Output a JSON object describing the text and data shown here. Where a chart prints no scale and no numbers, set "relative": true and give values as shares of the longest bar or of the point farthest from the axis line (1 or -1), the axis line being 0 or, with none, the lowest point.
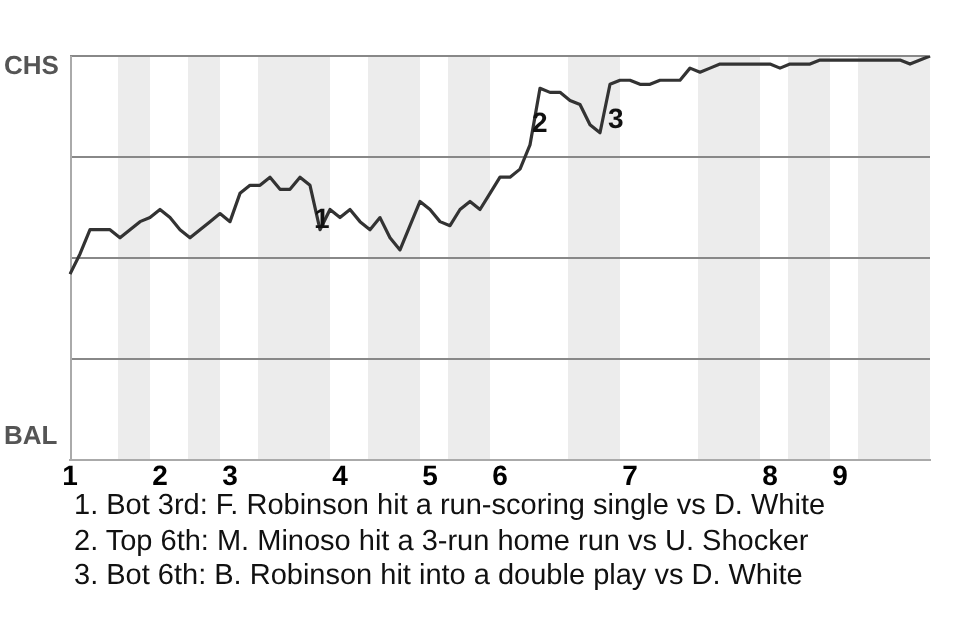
{
  "chart_data": {
    "type": "line",
    "relative": true,
    "categories": [
      "1",
      null,
      null,
      null,
      null,
      null,
      null,
      null,
      null,
      "2",
      null,
      null,
      null,
      null,
      null,
      null,
      "3",
      null,
      null,
      null,
      null,
      null,
      null,
      null,
      null,
      null,
      null,
      "4",
      null,
      null,
      null,
      null,
      null,
      null,
      null,
      null,
      "5",
      null,
      null,
      null,
      null,
      null,
      null,
      "6",
      null,
      null,
      null,
      null,
      null,
      null,
      null,
      null,
      null,
      null,
      null,
      null,
      "7",
      null,
      null,
      null,
      null,
      null,
      null,
      null,
      null,
      null,
      null,
      null,
      null,
      null,
      "8",
      null,
      null,
      null,
      null,
      null,
      null,
      "9",
      null,
      null,
      null,
      null,
      null,
      null,
      null,
      null,
      null
    ],
    "series": [
      {
        "color": "#333333",
        "values": [
          0.46,
          0.51,
          0.57,
          0.57,
          0.57,
          0.55,
          0.57,
          0.59,
          0.6,
          0.62,
          0.6,
          0.57,
          0.55,
          0.57,
          0.59,
          0.61,
          0.59,
          0.66,
          0.68,
          0.68,
          0.7,
          0.67,
          0.67,
          0.7,
          0.68,
          0.57,
          0.62,
          0.6,
          0.62,
          0.59,
          0.57,
          0.6,
          0.55,
          0.52,
          0.58,
          0.64,
          0.62,
          0.59,
          0.58,
          0.62,
          0.64,
          0.62,
          0.66,
          0.7,
          0.7,
          0.72,
          0.78,
          0.92,
          0.91,
          0.91,
          0.89,
          0.88,
          0.83,
          0.81,
          0.93,
          0.94,
          0.94,
          0.93,
          0.93,
          0.94,
          0.94,
          0.94,
          0.97,
          0.96,
          0.97,
          0.98,
          0.98,
          0.98,
          0.98,
          0.98,
          0.98,
          0.97,
          0.98,
          0.98,
          0.98,
          0.99,
          0.99,
          0.99,
          0.99,
          0.99,
          0.99,
          0.99,
          0.99,
          0.99,
          0.98,
          0.99,
          1
        ]
      }
    ],
    "ref_lines": [
      {
        "axis": "y",
        "value": 0.25,
        "color": "#888888"
      },
      {
        "axis": "y",
        "value": 0.5,
        "color": "#888888"
      },
      {
        "axis": "y",
        "value": 0.75,
        "color": "#888888"
      },
      {
        "axis": "y",
        "value": 1,
        "color": "#888888"
      }
    ],
    "legend": false,
    "marker": "none",
    "line_style": "solid",
    "annotations": [
      "CHS",
      "BAL",
      "1",
      "2",
      "3",
      "1. Bot 3rd: F. Robinson hit a run-scoring single vs D. White",
      "2. Top 6th: M. Minoso hit a 3-run home run vs U. Shocker",
      "3. Bot 6th: B. Robinson hit into a double play vs D. White"
    ]
  }
}
